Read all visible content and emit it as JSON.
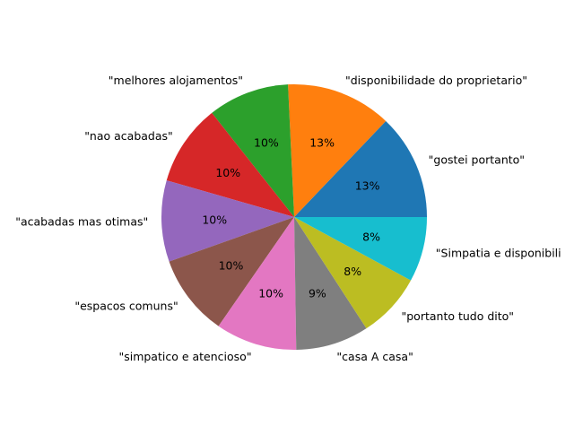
{
  "chart_data": {
    "type": "pie",
    "start_angle_deg": 0,
    "direction": "counterclockwise",
    "labels": [
      "\"gostei portanto\"",
      "\"disponibilidade do proprietario\"",
      "\"melhores alojamentos\"",
      "\"nao acabadas\"",
      "\"acabadas mas otimas\"",
      "\"espacos comuns\"",
      "\"simpatico e atencioso\"",
      "\"casa A casa\"",
      "\"portanto tudo dito\"",
      "\"Simpatia e disponibili"
    ],
    "values": [
      13,
      13,
      10,
      10,
      10,
      10,
      10,
      9,
      8,
      8
    ],
    "percent_labels": [
      "13%",
      "13%",
      "10%",
      "10%",
      "10%",
      "10%",
      "10%",
      "9%",
      "8%",
      "8%"
    ],
    "colors": [
      "#1f77b4",
      "#ff7f0e",
      "#2ca02c",
      "#d62728",
      "#9467bd",
      "#8c564b",
      "#e377c2",
      "#7f7f7f",
      "#bcbd22",
      "#17becf"
    ]
  }
}
